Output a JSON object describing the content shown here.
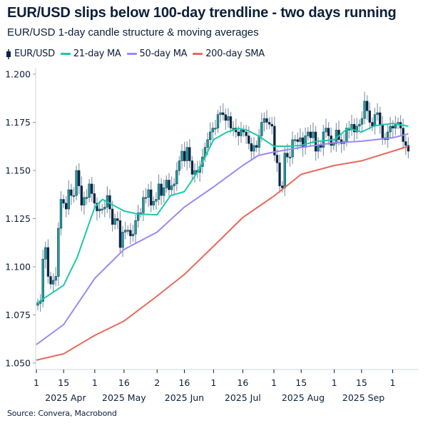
{
  "header": {
    "title": "EUR/USD slips below 100-day trendline - two days running",
    "subtitle": "EUR/USD 1-day candle structure & moving averages"
  },
  "footer": {
    "source": "Source: Convera, Macrobond"
  },
  "chart_data": {
    "type": "candlestick",
    "legend": [
      {
        "name": "EUR/USD",
        "color": "#0b2545"
      },
      {
        "name": "21-day MA",
        "color": "#1ec8a8"
      },
      {
        "name": "50-day MA",
        "color": "#9b87f5"
      },
      {
        "name": "200-day SMA",
        "color": "#e8695a"
      }
    ],
    "legend_position": "top-left",
    "grid": false,
    "colors": {
      "up": "#1a9e9a",
      "down": "#0b2545",
      "wick": "#8a9aaa"
    },
    "ylim": [
      1.05,
      1.2
    ],
    "y_ticks": [
      "1.200",
      "1.175",
      "1.150",
      "1.125",
      "1.100",
      "1.075",
      "1.050"
    ],
    "x_range": [
      "2025-04-01",
      "2025-10-14"
    ],
    "x_ticks": [
      {
        "date": "2025-04-01",
        "label": "1"
      },
      {
        "date": "2025-04-15",
        "label": "15"
      },
      {
        "date": "2025-05-01",
        "label": "1"
      },
      {
        "date": "2025-05-16",
        "label": "16"
      },
      {
        "date": "2025-06-02",
        "label": "2"
      },
      {
        "date": "2025-06-16",
        "label": "16"
      },
      {
        "date": "2025-07-01",
        "label": "1"
      },
      {
        "date": "2025-07-16",
        "label": "16"
      },
      {
        "date": "2025-08-01",
        "label": "1"
      },
      {
        "date": "2025-08-15",
        "label": "15"
      },
      {
        "date": "2025-09-01",
        "label": "1"
      },
      {
        "date": "2025-09-15",
        "label": "15"
      },
      {
        "date": "2025-10-01",
        "label": "1"
      }
    ],
    "month_labels": [
      {
        "label": "2025 Apr",
        "date": "2025-04-16"
      },
      {
        "label": "2025 May",
        "date": "2025-05-16"
      },
      {
        "label": "2025 Jun",
        "date": "2025-06-16"
      },
      {
        "label": "2025 Jul",
        "date": "2025-07-16"
      },
      {
        "label": "2025 Aug",
        "date": "2025-08-16"
      },
      {
        "label": "2025 Sep",
        "date": "2025-09-16"
      }
    ],
    "candle_range": [
      "2025-04-01",
      "2025-10-09"
    ],
    "close": [
      1.081,
      1.082,
      1.104,
      1.11,
      1.095,
      1.091,
      1.093,
      1.095,
      1.12,
      1.135,
      1.133,
      1.13,
      1.14,
      1.137,
      1.137,
      1.15,
      1.142,
      1.132,
      1.136,
      1.136,
      1.143,
      1.138,
      1.133,
      1.129,
      1.13,
      1.13,
      1.131,
      1.137,
      1.13,
      1.122,
      1.125,
      1.124,
      1.11,
      1.118,
      1.119,
      1.119,
      1.116,
      1.117,
      1.124,
      1.128,
      1.128,
      1.136,
      1.136,
      1.14,
      1.132,
      1.134,
      1.135,
      1.143,
      1.137,
      1.141,
      1.145,
      1.14,
      1.142,
      1.143,
      1.15,
      1.155,
      1.16,
      1.155,
      1.162,
      1.155,
      1.148,
      1.15,
      1.149,
      1.152,
      1.157,
      1.162,
      1.166,
      1.17,
      1.172,
      1.172,
      1.179,
      1.18,
      1.179,
      1.176,
      1.178,
      1.172,
      1.172,
      1.17,
      1.168,
      1.171,
      1.17,
      1.168,
      1.164,
      1.16,
      1.163,
      1.162,
      1.168,
      1.175,
      1.177,
      1.175,
      1.174,
      1.173,
      1.158,
      1.154,
      1.142,
      1.141,
      1.159,
      1.157,
      1.157,
      1.166,
      1.166,
      1.165,
      1.167,
      1.162,
      1.168,
      1.17,
      1.167,
      1.17,
      1.16,
      1.163,
      1.162,
      1.17,
      1.172,
      1.168,
      1.163,
      1.164,
      1.171,
      1.166,
      1.164,
      1.165,
      1.172,
      1.171,
      1.174,
      1.17,
      1.173,
      1.174,
      1.177,
      1.186,
      1.181,
      1.175,
      1.173,
      1.179,
      1.18,
      1.174,
      1.167,
      1.166,
      1.17,
      1.173,
      1.172,
      1.174,
      1.175,
      1.172,
      1.165,
      1.163,
      1.16
    ],
    "series": [
      {
        "name": "21-day MA",
        "color": "#1ec8a8",
        "points": [
          [
            "2025-04-01",
            1.081
          ],
          [
            "2025-04-15",
            1.0904
          ],
          [
            "2025-04-22",
            1.105
          ],
          [
            "2025-05-01",
            1.131
          ],
          [
            "2025-05-05",
            1.135
          ],
          [
            "2025-05-16",
            1.129
          ],
          [
            "2025-05-23",
            1.1274
          ],
          [
            "2025-06-02",
            1.127
          ],
          [
            "2025-06-09",
            1.137
          ],
          [
            "2025-06-16",
            1.139
          ],
          [
            "2025-06-23",
            1.1496
          ],
          [
            "2025-07-01",
            1.166
          ],
          [
            "2025-07-08",
            1.17
          ],
          [
            "2025-07-14",
            1.1718
          ],
          [
            "2025-07-18",
            1.171
          ],
          [
            "2025-07-24",
            1.168
          ],
          [
            "2025-08-01",
            1.1626
          ],
          [
            "2025-08-08",
            1.1626
          ],
          [
            "2025-08-15",
            1.163
          ],
          [
            "2025-08-22",
            1.165
          ],
          [
            "2025-09-01",
            1.166
          ],
          [
            "2025-09-08",
            1.1719
          ],
          [
            "2025-09-15",
            1.17
          ],
          [
            "2025-09-22",
            1.1733
          ],
          [
            "2025-10-01",
            1.1744
          ],
          [
            "2025-10-09",
            1.173
          ]
        ]
      },
      {
        "name": "50-day MA",
        "color": "#9b87f5",
        "points": [
          [
            "2025-04-01",
            1.0596
          ],
          [
            "2025-04-15",
            1.07
          ],
          [
            "2025-05-01",
            1.094
          ],
          [
            "2025-05-16",
            1.109
          ],
          [
            "2025-06-02",
            1.118
          ],
          [
            "2025-06-16",
            1.131
          ],
          [
            "2025-07-01",
            1.1415
          ],
          [
            "2025-07-16",
            1.1526
          ],
          [
            "2025-07-24",
            1.1578
          ],
          [
            "2025-08-01",
            1.1596
          ],
          [
            "2025-08-15",
            1.162
          ],
          [
            "2025-09-01",
            1.1644
          ],
          [
            "2025-09-15",
            1.1652
          ],
          [
            "2025-10-01",
            1.167
          ],
          [
            "2025-10-09",
            1.169
          ]
        ]
      },
      {
        "name": "200-day SMA",
        "color": "#e8695a",
        "points": [
          [
            "2025-04-01",
            1.0515
          ],
          [
            "2025-04-15",
            1.0548
          ],
          [
            "2025-05-01",
            1.0644
          ],
          [
            "2025-05-16",
            1.0718
          ],
          [
            "2025-06-02",
            1.0848
          ],
          [
            "2025-06-16",
            1.096
          ],
          [
            "2025-07-01",
            1.1107
          ],
          [
            "2025-07-16",
            1.1256
          ],
          [
            "2025-08-01",
            1.1367
          ],
          [
            "2025-08-15",
            1.148
          ],
          [
            "2025-09-01",
            1.1526
          ],
          [
            "2025-09-15",
            1.155
          ],
          [
            "2025-10-01",
            1.16
          ],
          [
            "2025-10-09",
            1.1626
          ]
        ]
      }
    ]
  }
}
